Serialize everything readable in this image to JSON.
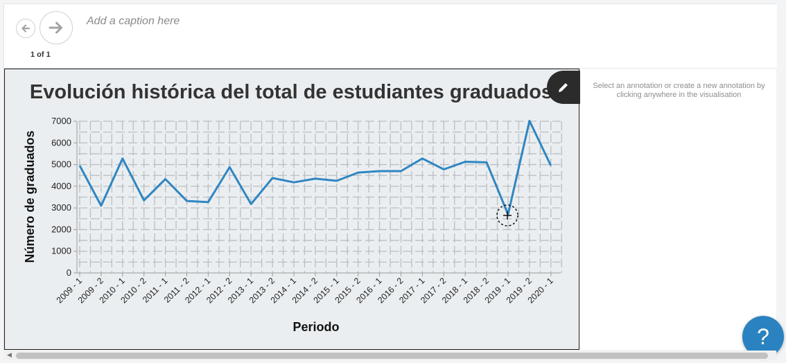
{
  "nav": {
    "prev_icon": "arrow-left-icon",
    "next_icon": "arrow-right-icon",
    "page_count": "1 of 1"
  },
  "caption_placeholder": "Add a caption here",
  "annotation_hint": "Select an annotation or create a new annotation by clicking anywhere in the visualisation",
  "edit_icon": "pencil-icon",
  "help_label": "?",
  "colors": {
    "line": "#2f86c2",
    "viz_bg": "#ebeef0",
    "help": "#2a83c0"
  },
  "chart_data": {
    "type": "line",
    "title": "Evolución histórica del total de estudiantes graduados",
    "xlabel": "Periodo",
    "ylabel": "Número de graduados",
    "ylim": [
      0,
      7000
    ],
    "yticks": [
      0,
      1000,
      2000,
      3000,
      4000,
      5000,
      6000,
      7000
    ],
    "grid": true,
    "categories": [
      "2009 - 1",
      "2009 - 2",
      "2010 - 1",
      "2010 - 2",
      "2011 - 1",
      "2011 - 2",
      "2012 - 1",
      "2012 - 2",
      "2013 - 1",
      "2013 - 2",
      "2014 - 1",
      "2014 - 2",
      "2015 - 1",
      "2015 - 2",
      "2016 - 1",
      "2016 - 2",
      "2017 - 1",
      "2017 - 2",
      "2018 - 1",
      "2018 - 2",
      "2019 - 1",
      "2019 - 2",
      "2020 - 1"
    ],
    "series": [
      {
        "values": [
          4950,
          3100,
          5280,
          3350,
          4330,
          3320,
          3270,
          4880,
          3180,
          4380,
          4180,
          4350,
          4250,
          4630,
          4700,
          4700,
          5280,
          4780,
          5130,
          5100,
          2700,
          7020,
          4950
        ]
      }
    ]
  }
}
